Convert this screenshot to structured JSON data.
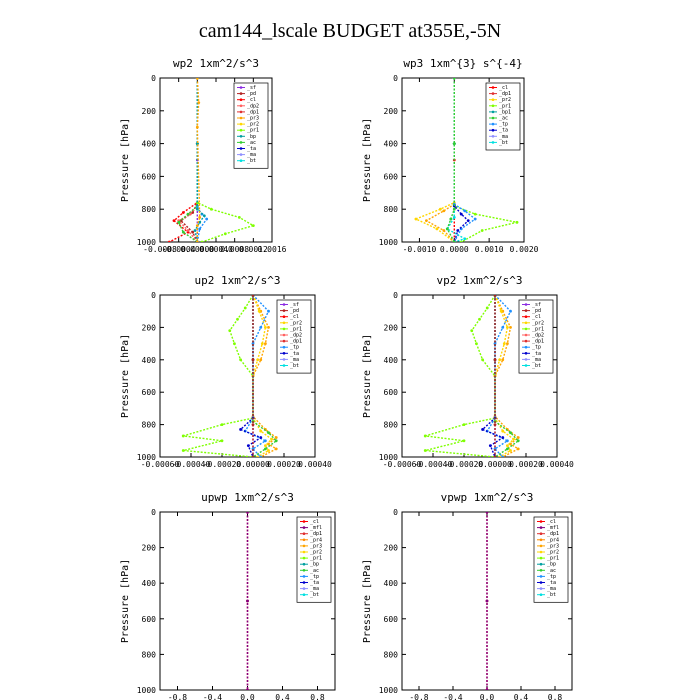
{
  "title": "cam144_lscale  BUDGET at355E,-5N",
  "colors": {
    "sf": "#8b2be2",
    "pd": "#b22222",
    "cl": "#ff0000",
    "mfl": "#800080",
    "dp1": "#e03030",
    "dp2": "#ff6060",
    "pr1": "#7fff00",
    "pr2": "#ffd700",
    "pr3": "#ffa500",
    "pr4": "#ff8c00",
    "bp": "#00a0a0",
    "ac": "#32cd32",
    "tp": "#1e90ff",
    "ta": "#0000cd",
    "ma": "#9090ff",
    "bt": "#00e0e0"
  },
  "chart_data": [
    {
      "type": "line",
      "title": "wp2   1xm^2/s^3",
      "ylabel": "Pressure [hPa]",
      "xlim": [
        -0.0008,
        0.0016
      ],
      "ylim": [
        1000,
        0
      ],
      "xticks": [
        "-0.0008",
        "-0.0004",
        "0.00000",
        "0.00040",
        "0.0008",
        "0.0012",
        "0.0016"
      ],
      "yticks": [
        "0",
        "200",
        "400",
        "600",
        "800",
        "1000"
      ],
      "grid": false,
      "legend": "top-right",
      "legend_labels": [
        "_sf",
        "_pd",
        "_cl",
        "_dp2",
        "_dp1",
        "_pr3",
        "_pr2",
        "_pr1",
        "_bp",
        "_ac",
        "_ta",
        "_ma",
        "_bt"
      ],
      "series": [
        {
          "key": "sf",
          "x": [
            0,
            0,
            0
          ],
          "y": [
            0,
            500,
            1000
          ]
        },
        {
          "key": "pd",
          "x": [
            0,
            0,
            0,
            -0.0001,
            -0.00035,
            -0.0001,
            0
          ],
          "y": [
            0,
            400,
            760,
            820,
            870,
            940,
            1000
          ]
        },
        {
          "key": "cl",
          "x": [
            0,
            0,
            0,
            -0.0003,
            -0.0005,
            -0.0002,
            -0.0006
          ],
          "y": [
            0,
            400,
            760,
            820,
            870,
            940,
            1000
          ]
        },
        {
          "key": "dp2",
          "x": [
            0,
            0,
            0,
            -0.00015,
            -0.0004,
            -0.0002,
            0
          ],
          "y": [
            0,
            400,
            780,
            830,
            870,
            930,
            1000
          ]
        },
        {
          "key": "pr1",
          "x": [
            0,
            0,
            0,
            0.0003,
            0.0009,
            0.0012,
            0.0006,
            0.0001
          ],
          "y": [
            0,
            400,
            760,
            800,
            850,
            900,
            950,
            1000
          ]
        },
        {
          "key": "ac",
          "x": [
            0,
            0,
            0,
            -0.0002,
            -0.0004,
            -0.0003,
            0
          ],
          "y": [
            0,
            400,
            780,
            830,
            880,
            940,
            1000
          ]
        },
        {
          "key": "tp",
          "x": [
            0,
            0,
            0,
            0.0001,
            0.0002,
            5e-05,
            0
          ],
          "y": [
            0,
            400,
            790,
            830,
            860,
            920,
            1000
          ]
        },
        {
          "key": "bp",
          "x": [
            0,
            0,
            0,
            0.00015,
            5e-05,
            -5e-05,
            0
          ],
          "y": [
            0,
            400,
            800,
            840,
            880,
            930,
            1000
          ]
        },
        {
          "key": "pr3",
          "x": [
            0,
            3e-05,
            0,
            5e-05,
            0,
            0
          ],
          "y": [
            0,
            150,
            300,
            850,
            900,
            1000
          ]
        }
      ]
    },
    {
      "type": "line",
      "title": "wp3   1xm^{3} s^{-4}",
      "ylabel": "Pressure [hPa]",
      "xlim": [
        -0.0015,
        0.002
      ],
      "ylim": [
        1000,
        0
      ],
      "xticks": [
        "-0.0010",
        "0.0000",
        "0.0010",
        "0.0020"
      ],
      "yticks": [
        "0",
        "200",
        "400",
        "600",
        "800",
        "1000"
      ],
      "grid": false,
      "legend": "top-right",
      "legend_labels": [
        "_cl",
        "_dp1",
        "_pr2",
        "_pr1",
        "_bp1",
        "_ac",
        "_tp",
        "_ta",
        "_ma",
        "_bt"
      ],
      "series": [
        {
          "key": "cl",
          "x": [
            0,
            0,
            0
          ],
          "y": [
            0,
            500,
            1000
          ]
        },
        {
          "key": "pr2",
          "x": [
            0,
            0,
            0,
            -0.0004,
            -0.0011,
            -0.0005,
            0
          ],
          "y": [
            0,
            400,
            760,
            800,
            860,
            920,
            1000
          ]
        },
        {
          "key": "pr3",
          "x": [
            0,
            0,
            0,
            -0.0003,
            -0.0008,
            -0.0003,
            0
          ],
          "y": [
            0,
            400,
            770,
            810,
            870,
            930,
            1000
          ]
        },
        {
          "key": "pr1",
          "x": [
            0,
            0,
            0,
            0.0006,
            0.0018,
            0.0008,
            0.0002
          ],
          "y": [
            0,
            400,
            780,
            830,
            880,
            930,
            1000
          ]
        },
        {
          "key": "tp",
          "x": [
            0,
            0,
            0,
            0.0003,
            0.0006,
            0.0002,
            0
          ],
          "y": [
            0,
            400,
            770,
            810,
            860,
            920,
            1000
          ]
        },
        {
          "key": "ta",
          "x": [
            0,
            0,
            0,
            0.0002,
            0.0004,
            0.0001,
            0
          ],
          "y": [
            0,
            400,
            780,
            830,
            870,
            930,
            1000
          ]
        },
        {
          "key": "bt",
          "x": [
            0,
            0,
            0,
            -0.0002,
            0.0003,
            0
          ],
          "y": [
            0,
            400,
            850,
            920,
            980,
            1000
          ]
        },
        {
          "key": "ac",
          "x": [
            0,
            0,
            0,
            -0.0001,
            -0.0002,
            0
          ],
          "y": [
            0,
            400,
            800,
            860,
            920,
            1000
          ]
        }
      ]
    },
    {
      "type": "line",
      "title": "up2   1xm^2/s^3",
      "ylabel": "Pressure [hPa]",
      "xlim": [
        -0.0006,
        0.0004
      ],
      "ylim": [
        1000,
        0
      ],
      "xticks": [
        "-0.00060",
        "-0.00040",
        "-0.00020",
        "0.00000",
        "0.00020",
        "0.00040"
      ],
      "yticks": [
        "0",
        "200",
        "400",
        "600",
        "800",
        "1000"
      ],
      "grid": false,
      "legend": "top-right",
      "legend_labels": [
        "_sf",
        "_pd",
        "_cl",
        "_pr2",
        "_pr1",
        "_dp2",
        "_dp1",
        "_tp",
        "_ta",
        "_ma",
        "_bt"
      ],
      "series": [
        {
          "key": "sf",
          "x": [
            0,
            0,
            0
          ],
          "y": [
            0,
            500,
            1000
          ]
        },
        {
          "key": "pr1",
          "x": [
            0,
            -5e-05,
            -0.0001,
            -0.00015,
            -0.00012,
            -8e-05,
            0,
            0,
            -0.0002,
            -0.00045,
            -0.0002,
            -0.00045,
            0
          ],
          "y": [
            0,
            80,
            150,
            220,
            300,
            400,
            500,
            760,
            800,
            870,
            900,
            960,
            1000
          ]
        },
        {
          "key": "pr3",
          "x": [
            0,
            5e-05,
            0.0001,
            8e-05,
            5e-05,
            0,
            0,
            8e-05,
            0.00015,
            0.0001,
            0.00015,
            5e-05
          ],
          "y": [
            0,
            100,
            200,
            300,
            400,
            500,
            750,
            830,
            880,
            920,
            950,
            1000
          ]
        },
        {
          "key": "pr2",
          "x": [
            0,
            4e-05,
            8e-05,
            6e-05,
            3e-05,
            0,
            0,
            5e-05,
            0.00012,
            8e-05,
            0.0001,
            3e-05
          ],
          "y": [
            0,
            100,
            200,
            300,
            400,
            500,
            760,
            840,
            890,
            930,
            960,
            1000
          ]
        },
        {
          "key": "tp",
          "x": [
            0,
            0.0001,
            5e-05,
            0,
            0,
            -5e-05,
            8e-05,
            0,
            5e-05
          ],
          "y": [
            0,
            100,
            200,
            300,
            760,
            840,
            900,
            950,
            1000
          ]
        },
        {
          "key": "ta",
          "x": [
            0,
            0,
            0,
            -8e-05,
            5e-05,
            -3e-05,
            0
          ],
          "y": [
            0,
            400,
            760,
            830,
            880,
            930,
            1000
          ]
        },
        {
          "key": "ac",
          "x": [
            0,
            0,
            0,
            0.0001,
            0.00015,
            8e-05,
            0
          ],
          "y": [
            0,
            400,
            780,
            850,
            900,
            950,
            1000
          ]
        },
        {
          "key": "pd",
          "x": [
            0,
            0,
            0,
            0
          ],
          "y": [
            0,
            400,
            800,
            1000
          ]
        }
      ]
    },
    {
      "type": "line",
      "title": "vp2   1xm^2/s^3",
      "ylabel": "Pressure [hPa]",
      "xlim": [
        -0.0006,
        0.0004
      ],
      "ylim": [
        1000,
        0
      ],
      "xticks": [
        "-0.00060",
        "-0.00040",
        "-0.00020",
        "0.00000",
        "0.00020",
        "0.00040"
      ],
      "yticks": [
        "0",
        "200",
        "400",
        "600",
        "800",
        "1000"
      ],
      "grid": false,
      "legend": "top-right",
      "legend_labels": [
        "_sf",
        "_pd",
        "_cl",
        "_pr2",
        "_pr1",
        "_dp2",
        "_dp1",
        "_tp",
        "_ta",
        "_ma",
        "_bt"
      ],
      "series": [
        {
          "key": "sf",
          "x": [
            0,
            0,
            0
          ],
          "y": [
            0,
            500,
            1000
          ]
        },
        {
          "key": "pr1",
          "x": [
            0,
            -5e-05,
            -0.0001,
            -0.00015,
            -0.00012,
            -8e-05,
            0,
            0,
            -0.0002,
            -0.00045,
            -0.0002,
            -0.00045,
            0
          ],
          "y": [
            0,
            80,
            150,
            220,
            300,
            400,
            500,
            760,
            800,
            870,
            900,
            960,
            1000
          ]
        },
        {
          "key": "pr3",
          "x": [
            0,
            5e-05,
            0.0001,
            8e-05,
            5e-05,
            0,
            0,
            8e-05,
            0.00015,
            0.0001,
            0.00015,
            5e-05
          ],
          "y": [
            0,
            100,
            200,
            300,
            400,
            500,
            750,
            830,
            880,
            920,
            950,
            1000
          ]
        },
        {
          "key": "pr2",
          "x": [
            0,
            4e-05,
            8e-05,
            6e-05,
            3e-05,
            0,
            0,
            5e-05,
            0.00012,
            8e-05,
            0.0001,
            3e-05
          ],
          "y": [
            0,
            100,
            200,
            300,
            400,
            500,
            760,
            840,
            890,
            930,
            960,
            1000
          ]
        },
        {
          "key": "tp",
          "x": [
            0,
            0.0001,
            5e-05,
            0,
            0,
            -5e-05,
            8e-05,
            0,
            5e-05
          ],
          "y": [
            0,
            100,
            200,
            300,
            760,
            840,
            900,
            950,
            1000
          ]
        },
        {
          "key": "ta",
          "x": [
            0,
            0,
            0,
            -8e-05,
            5e-05,
            -3e-05,
            0
          ],
          "y": [
            0,
            400,
            760,
            830,
            880,
            930,
            1000
          ]
        },
        {
          "key": "ac",
          "x": [
            0,
            0,
            0,
            0.0001,
            0.00015,
            8e-05,
            0
          ],
          "y": [
            0,
            400,
            780,
            850,
            900,
            950,
            1000
          ]
        },
        {
          "key": "pd",
          "x": [
            0,
            0,
            0,
            0
          ],
          "y": [
            0,
            400,
            800,
            1000
          ]
        }
      ]
    },
    {
      "type": "line",
      "title": "upwp   1xm^2/s^3",
      "ylabel": "Pressure [hPa]",
      "xlim": [
        -1.0,
        1.0
      ],
      "ylim": [
        1000,
        0
      ],
      "xticks": [
        "-0.8",
        "-0.4",
        "0.0",
        "0.4",
        "0.8"
      ],
      "yticks": [
        "0",
        "200",
        "400",
        "600",
        "800",
        "1000"
      ],
      "grid": false,
      "legend": "top-right",
      "legend_labels": [
        "_cl",
        "_mfl",
        "_dp1",
        "_pr4",
        "_pr3",
        "_pr2",
        "_pr1",
        "_bp",
        "_ac",
        "_tp",
        "_ta",
        "_ma",
        "_bt"
      ],
      "series": [
        {
          "key": "cl",
          "x": [
            0,
            0,
            0
          ],
          "y": [
            0,
            500,
            1000
          ]
        },
        {
          "key": "mfl",
          "x": [
            0,
            0,
            0
          ],
          "y": [
            0,
            500,
            1000
          ]
        }
      ]
    },
    {
      "type": "line",
      "title": "vpwp   1xm^2/s^3",
      "ylabel": "Pressure [hPa]",
      "xlim": [
        -1.0,
        1.0
      ],
      "ylim": [
        1000,
        0
      ],
      "xticks": [
        "-0.8",
        "-0.4",
        "0.0",
        "0.4",
        "0.8"
      ],
      "yticks": [
        "0",
        "200",
        "400",
        "600",
        "800",
        "1000"
      ],
      "grid": false,
      "legend": "top-right",
      "legend_labels": [
        "_cl",
        "_mfl",
        "_dp1",
        "_pr4",
        "_pr3",
        "_pr2",
        "_pr1",
        "_bp",
        "_ac",
        "_tp",
        "_ta",
        "_ma",
        "_bt"
      ],
      "series": [
        {
          "key": "cl",
          "x": [
            0,
            0,
            0
          ],
          "y": [
            0,
            500,
            1000
          ]
        },
        {
          "key": "mfl",
          "x": [
            0,
            0,
            0
          ],
          "y": [
            0,
            500,
            1000
          ]
        }
      ]
    }
  ]
}
